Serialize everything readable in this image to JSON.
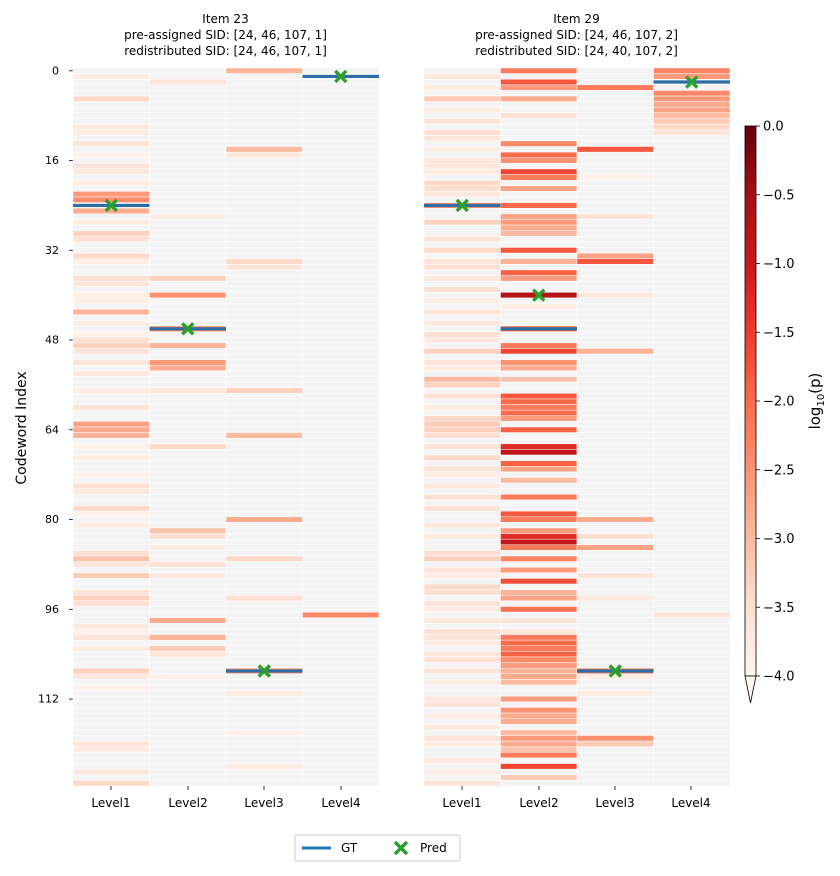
{
  "chart_data": {
    "type": "heatmap",
    "y_axis_label": "Codeword Index",
    "y_ticks": [
      0,
      16,
      32,
      48,
      64,
      80,
      96,
      112
    ],
    "rows": 128,
    "columns": [
      "Level1",
      "Level2",
      "Level3",
      "Level4"
    ],
    "colorbar": {
      "label": "log10(p)",
      "label_base": "log",
      "label_sub": "10",
      "label_arg": "(p)",
      "min": -4.0,
      "max": 0.0,
      "ticks": [
        "0.0",
        "−0.5",
        "−1.0",
        "−1.5",
        "−2.0",
        "−2.5",
        "−3.0",
        "−3.5",
        "−4.0"
      ],
      "tick_values": [
        0.0,
        -0.5,
        -1.0,
        -1.5,
        -2.0,
        -2.5,
        -3.0,
        -3.5,
        -4.0
      ],
      "extend": "min",
      "colormap": "Reds"
    },
    "legend": {
      "gt_label": "GT",
      "pred_label": "Pred"
    },
    "panels": [
      {
        "title_lines": [
          "Item 23",
          "pre-assigned SID: [24, 46, 107, 1]",
          "redistributed SID: [24, 46, 107, 1]"
        ],
        "gt": [
          24,
          46,
          107,
          1
        ],
        "pred": [
          24,
          46,
          107,
          1
        ],
        "cells": {
          "Level1": [
            [
              1,
              -3.8
            ],
            [
              5,
              -3.4
            ],
            [
              10,
              -3.7
            ],
            [
              11,
              -3.8
            ],
            [
              13,
              -3.6
            ],
            [
              15,
              -3.9
            ],
            [
              17,
              -3.6
            ],
            [
              18,
              -3.7
            ],
            [
              20,
              -3.8
            ],
            [
              22,
              -2.6
            ],
            [
              23,
              -2.4
            ],
            [
              25,
              -2.8
            ],
            [
              27,
              -3.8
            ],
            [
              29,
              -3.3
            ],
            [
              30,
              -3.5
            ],
            [
              33,
              -3.4
            ],
            [
              34,
              -3.8
            ],
            [
              37,
              -3.5
            ],
            [
              38,
              -3.6
            ],
            [
              40,
              -3.8
            ],
            [
              41,
              -3.8
            ],
            [
              43,
              -2.9
            ],
            [
              45,
              -3.8
            ],
            [
              47,
              -3.9
            ],
            [
              48,
              -3.5
            ],
            [
              49,
              -3.3
            ],
            [
              50,
              -3.6
            ],
            [
              52,
              -3.6
            ],
            [
              54,
              -3.7
            ],
            [
              57,
              -3.8
            ],
            [
              60,
              -3.6
            ],
            [
              63,
              -2.7
            ],
            [
              64,
              -2.8
            ],
            [
              65,
              -2.9
            ],
            [
              67,
              -3.9
            ],
            [
              69,
              -3.8
            ],
            [
              72,
              -3.9
            ],
            [
              74,
              -3.5
            ],
            [
              75,
              -3.7
            ],
            [
              78,
              -3.4
            ],
            [
              79,
              -3.9
            ],
            [
              81,
              -3.8
            ],
            [
              86,
              -3.5
            ],
            [
              87,
              -3.1
            ],
            [
              88,
              -3.7
            ],
            [
              90,
              -3.2
            ],
            [
              93,
              -3.6
            ],
            [
              94,
              -3.3
            ],
            [
              95,
              -3.5
            ],
            [
              99,
              -3.7
            ],
            [
              100,
              -3.9
            ],
            [
              101,
              -3.6
            ],
            [
              103,
              -3.8
            ],
            [
              107,
              -3.3
            ],
            [
              108,
              -3.7
            ],
            [
              110,
              -3.9
            ],
            [
              120,
              -3.6
            ],
            [
              121,
              -3.8
            ],
            [
              125,
              -3.7
            ],
            [
              127,
              -3.4
            ]
          ],
          "Level2": [
            [
              2,
              -3.6
            ],
            [
              26,
              -3.8
            ],
            [
              37,
              -3.3
            ],
            [
              40,
              -2.5
            ],
            [
              46,
              -2.2
            ],
            [
              49,
              -2.9
            ],
            [
              52,
              -2.6
            ],
            [
              53,
              -2.8
            ],
            [
              57,
              -3.7
            ],
            [
              67,
              -3.4
            ],
            [
              82,
              -3.1
            ],
            [
              83,
              -3.5
            ],
            [
              85,
              -3.8
            ],
            [
              88,
              -3.6
            ],
            [
              90,
              -3.7
            ],
            [
              98,
              -2.8
            ],
            [
              101,
              -2.9
            ],
            [
              103,
              -3.2
            ],
            [
              104,
              -3.6
            ],
            [
              108,
              -3.9
            ]
          ],
          "Level3": [
            [
              0,
              -2.9
            ],
            [
              14,
              -3.0
            ],
            [
              15,
              -3.7
            ],
            [
              34,
              -3.4
            ],
            [
              35,
              -3.6
            ],
            [
              57,
              -3.3
            ],
            [
              65,
              -3.0
            ],
            [
              80,
              -2.8
            ],
            [
              87,
              -3.4
            ],
            [
              94,
              -3.5
            ],
            [
              107,
              -2.4
            ],
            [
              111,
              -3.8
            ],
            [
              118,
              -3.9
            ],
            [
              124,
              -3.8
            ]
          ],
          "Level4": [
            [
              97,
              -2.4
            ]
          ]
        }
      },
      {
        "title_lines": [
          "Item 29",
          "pre-assigned SID: [24, 46, 107, 2]",
          "redistributed SID: [24, 40, 107, 2]"
        ],
        "gt": [
          24,
          46,
          107,
          2
        ],
        "pred": [
          24,
          40,
          107,
          2
        ],
        "cells": {
          "Level1": [
            [
              1,
              -3.7
            ],
            [
              3,
              -3.8
            ],
            [
              5,
              -3.2
            ],
            [
              7,
              -3.8
            ],
            [
              9,
              -3.6
            ],
            [
              11,
              -3.5
            ],
            [
              12,
              -3.6
            ],
            [
              14,
              -3.8
            ],
            [
              16,
              -3.7
            ],
            [
              17,
              -3.6
            ],
            [
              18,
              -3.8
            ],
            [
              20,
              -3.4
            ],
            [
              21,
              -3.5
            ],
            [
              22,
              -3.7
            ],
            [
              24,
              -2.4
            ],
            [
              27,
              -3.3
            ],
            [
              30,
              -3.6
            ],
            [
              32,
              -3.4
            ],
            [
              34,
              -3.6
            ],
            [
              35,
              -3.5
            ],
            [
              37,
              -3.7
            ],
            [
              39,
              -3.5
            ],
            [
              41,
              -3.8
            ],
            [
              43,
              -3.6
            ],
            [
              45,
              -3.7
            ],
            [
              47,
              -3.5
            ],
            [
              48,
              -3.7
            ],
            [
              50,
              -3.3
            ],
            [
              52,
              -3.6
            ],
            [
              53,
              -3.8
            ],
            [
              55,
              -3.0
            ],
            [
              56,
              -3.3
            ],
            [
              58,
              -3.5
            ],
            [
              60,
              -3.8
            ],
            [
              62,
              -3.4
            ],
            [
              63,
              -3.2
            ],
            [
              64,
              -3.3
            ],
            [
              65,
              -3.5
            ],
            [
              67,
              -3.6
            ],
            [
              69,
              -3.4
            ],
            [
              71,
              -3.6
            ],
            [
              72,
              -3.8
            ],
            [
              74,
              -3.7
            ],
            [
              76,
              -3.5
            ],
            [
              78,
              -3.6
            ],
            [
              81,
              -3.7
            ],
            [
              83,
              -3.8
            ],
            [
              86,
              -3.5
            ],
            [
              87,
              -3.3
            ],
            [
              89,
              -3.6
            ],
            [
              90,
              -3.8
            ],
            [
              92,
              -3.4
            ],
            [
              93,
              -3.5
            ],
            [
              95,
              -3.6
            ],
            [
              96,
              -3.8
            ],
            [
              98,
              -3.7
            ],
            [
              100,
              -3.5
            ],
            [
              101,
              -3.6
            ],
            [
              102,
              -3.8
            ],
            [
              104,
              -3.7
            ],
            [
              105,
              -3.5
            ],
            [
              107,
              -3.6
            ],
            [
              109,
              -3.8
            ],
            [
              112,
              -3.7
            ],
            [
              113,
              -3.6
            ],
            [
              115,
              -3.8
            ],
            [
              117,
              -3.7
            ],
            [
              119,
              -3.6
            ],
            [
              120,
              -3.8
            ],
            [
              123,
              -3.7
            ],
            [
              125,
              -3.8
            ],
            [
              127,
              -3.6
            ]
          ],
          "Level2": [
            [
              0,
              -2.2
            ],
            [
              2,
              -1.8
            ],
            [
              3,
              -2.6
            ],
            [
              5,
              -2.8
            ],
            [
              8,
              -3.5
            ],
            [
              13,
              -2.4
            ],
            [
              15,
              -2.0
            ],
            [
              16,
              -2.5
            ],
            [
              18,
              -1.6
            ],
            [
              19,
              -2.2
            ],
            [
              21,
              -2.7
            ],
            [
              24,
              -2.0
            ],
            [
              26,
              -2.7
            ],
            [
              27,
              -2.6
            ],
            [
              28,
              -2.8
            ],
            [
              29,
              -3.0
            ],
            [
              32,
              -1.8
            ],
            [
              34,
              -2.9
            ],
            [
              36,
              -1.9
            ],
            [
              37,
              -2.6
            ],
            [
              40,
              -0.7
            ],
            [
              42,
              -3.8
            ],
            [
              46,
              -1.8
            ],
            [
              49,
              -2.2
            ],
            [
              50,
              -1.6
            ],
            [
              52,
              -2.5
            ],
            [
              53,
              -2.8
            ],
            [
              55,
              -3.1
            ],
            [
              58,
              -1.8
            ],
            [
              59,
              -2.0
            ],
            [
              60,
              -2.2
            ],
            [
              61,
              -2.0
            ],
            [
              62,
              -2.6
            ],
            [
              64,
              -1.9
            ],
            [
              67,
              -1.3
            ],
            [
              68,
              -0.9
            ],
            [
              70,
              -1.9
            ],
            [
              71,
              -2.7
            ],
            [
              73,
              -3.0
            ],
            [
              76,
              -2.2
            ],
            [
              79,
              -1.8
            ],
            [
              80,
              -2.2
            ],
            [
              82,
              -2.6
            ],
            [
              83,
              -1.3
            ],
            [
              84,
              -0.9
            ],
            [
              85,
              -2.2
            ],
            [
              87,
              -2.3
            ],
            [
              89,
              -2.6
            ],
            [
              91,
              -1.7
            ],
            [
              93,
              -2.9
            ],
            [
              94,
              -2.7
            ],
            [
              96,
              -2.1
            ],
            [
              98,
              -3.6
            ],
            [
              100,
              -3.7
            ],
            [
              101,
              -2.2
            ],
            [
              102,
              -2.0
            ],
            [
              103,
              -2.2
            ],
            [
              104,
              -1.9
            ],
            [
              105,
              -2.4
            ],
            [
              106,
              -2.6
            ],
            [
              107,
              -2.9
            ],
            [
              108,
              -2.8
            ],
            [
              109,
              -3.0
            ],
            [
              112,
              -2.6
            ],
            [
              114,
              -2.5
            ],
            [
              115,
              -2.8
            ],
            [
              116,
              -2.8
            ],
            [
              118,
              -3.0
            ],
            [
              119,
              -2.6
            ],
            [
              120,
              -2.8
            ],
            [
              121,
              -3.1
            ],
            [
              122,
              -2.2
            ],
            [
              124,
              -1.6
            ],
            [
              126,
              -3.2
            ]
          ],
          "Level3": [
            [
              3,
              -2.2
            ],
            [
              14,
              -1.8
            ],
            [
              19,
              -3.9
            ],
            [
              26,
              -3.6
            ],
            [
              33,
              -2.7
            ],
            [
              34,
              -1.8
            ],
            [
              40,
              -3.7
            ],
            [
              50,
              -2.9
            ],
            [
              80,
              -2.8
            ],
            [
              83,
              -3.5
            ],
            [
              85,
              -2.7
            ],
            [
              90,
              -3.6
            ],
            [
              94,
              -3.7
            ],
            [
              107,
              -2.1
            ],
            [
              108,
              -3.8
            ],
            [
              111,
              -3.8
            ],
            [
              119,
              -2.5
            ],
            [
              120,
              -3.2
            ]
          ],
          "Level4": [
            [
              0,
              -2.3
            ],
            [
              1,
              -2.6
            ],
            [
              4,
              -2.4
            ],
            [
              5,
              -2.6
            ],
            [
              6,
              -2.8
            ],
            [
              7,
              -2.7
            ],
            [
              8,
              -3.0
            ],
            [
              9,
              -3.2
            ],
            [
              10,
              -3.4
            ],
            [
              11,
              -3.6
            ],
            [
              97,
              -3.6
            ]
          ]
        }
      }
    ]
  }
}
